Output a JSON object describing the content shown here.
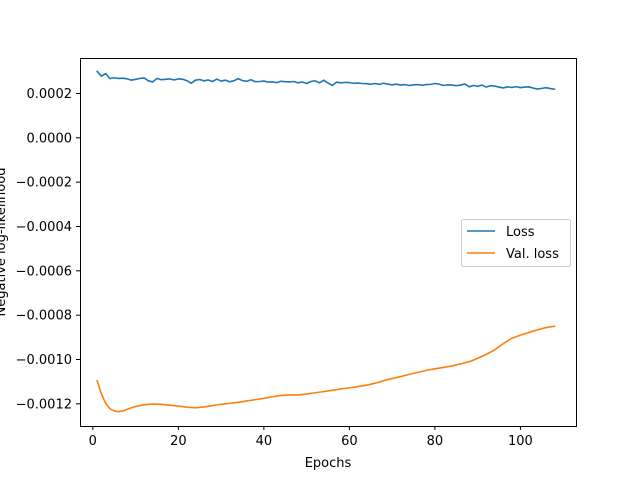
{
  "chart_data": {
    "type": "line",
    "title": "",
    "xlabel": "Epochs",
    "ylabel": "Negative log-likelihood",
    "xlim": [
      -3,
      113
    ],
    "ylim": [
      -0.0013,
      0.00036
    ],
    "x_ticks": [
      {
        "value": 0,
        "label": "0"
      },
      {
        "value": 20,
        "label": "20"
      },
      {
        "value": 40,
        "label": "40"
      },
      {
        "value": 60,
        "label": "60"
      },
      {
        "value": 80,
        "label": "80"
      },
      {
        "value": 100,
        "label": "100"
      }
    ],
    "y_ticks": [
      {
        "value": 0.0002,
        "label": "0.0002"
      },
      {
        "value": 0.0,
        "label": "0.0000"
      },
      {
        "value": -0.0002,
        "label": "−0.0002"
      },
      {
        "value": -0.0004,
        "label": "−0.0004"
      },
      {
        "value": -0.0006,
        "label": "−0.0006"
      },
      {
        "value": -0.0008,
        "label": "−0.0008"
      },
      {
        "value": -0.001,
        "label": "−0.0010"
      },
      {
        "value": -0.0012,
        "label": "−0.0012"
      }
    ],
    "grid": false,
    "legend_position": "center-right",
    "series": [
      {
        "name": "Loss",
        "color": "#1f77b4",
        "x": [
          1,
          2,
          3,
          4,
          5,
          6,
          7,
          8,
          9,
          10,
          11,
          12,
          13,
          14,
          15,
          16,
          17,
          18,
          19,
          20,
          21,
          22,
          23,
          24,
          25,
          26,
          27,
          28,
          29,
          30,
          31,
          32,
          33,
          34,
          35,
          36,
          37,
          38,
          39,
          40,
          41,
          42,
          43,
          44,
          45,
          46,
          47,
          48,
          49,
          50,
          51,
          52,
          53,
          54,
          55,
          56,
          57,
          58,
          59,
          60,
          61,
          62,
          63,
          64,
          65,
          66,
          67,
          68,
          69,
          70,
          71,
          72,
          73,
          74,
          75,
          76,
          77,
          78,
          79,
          80,
          81,
          82,
          83,
          84,
          85,
          86,
          87,
          88,
          89,
          90,
          91,
          92,
          93,
          94,
          95,
          96,
          97,
          98,
          99,
          100,
          101,
          102,
          103,
          104,
          105,
          106,
          107,
          108
        ],
        "values": [
          0.0003,
          0.000278,
          0.00029,
          0.000267,
          0.000271,
          0.000268,
          0.000269,
          0.000266,
          0.00026,
          0.000264,
          0.000268,
          0.00027,
          0.000257,
          0.000252,
          0.000268,
          0.000262,
          0.000264,
          0.000266,
          0.000261,
          0.000266,
          0.000264,
          0.000258,
          0.000246,
          0.00026,
          0.000263,
          0.000257,
          0.000261,
          0.000254,
          0.000265,
          0.000256,
          0.00026,
          0.000253,
          0.000257,
          0.000267,
          0.000258,
          0.000255,
          0.000262,
          0.000253,
          0.000254,
          0.000256,
          0.000251,
          0.000252,
          0.000249,
          0.000255,
          0.000253,
          0.000252,
          0.000254,
          0.000248,
          0.000252,
          0.000245,
          0.000254,
          0.000257,
          0.000248,
          0.00026,
          0.000247,
          0.000236,
          0.000251,
          0.000248,
          0.00025,
          0.000249,
          0.000246,
          0.000247,
          0.000245,
          0.000244,
          0.000242,
          0.000245,
          0.000241,
          0.000246,
          0.000242,
          0.000239,
          0.000242,
          0.000238,
          0.00024,
          0.000236,
          0.000239,
          0.00024,
          0.000237,
          0.00024,
          0.000241,
          0.000245,
          0.000242,
          0.000236,
          0.000239,
          0.000238,
          0.000235,
          0.000238,
          0.000243,
          0.00023,
          0.000236,
          0.000232,
          0.000238,
          0.000229,
          0.000235,
          0.000233,
          0.000229,
          0.000225,
          0.00023,
          0.000227,
          0.000231,
          0.000226,
          0.000229,
          0.00023,
          0.000224,
          0.00022,
          0.000223,
          0.000226,
          0.000222,
          0.000219
        ]
      },
      {
        "name": "Val. loss",
        "color": "#ff7f0e",
        "x": [
          1,
          2,
          3,
          4,
          5,
          6,
          7,
          8,
          9,
          10,
          12,
          14,
          16,
          18,
          20,
          22,
          24,
          26,
          28,
          30,
          32,
          34,
          36,
          38,
          40,
          42,
          44,
          46,
          48,
          50,
          52,
          54,
          56,
          58,
          60,
          62,
          64,
          66,
          68,
          70,
          72,
          74,
          76,
          78,
          80,
          82,
          84,
          86,
          88,
          90,
          92,
          94,
          96,
          98,
          100,
          102,
          104,
          106,
          108
        ],
        "values": [
          -0.001095,
          -0.001155,
          -0.001198,
          -0.001222,
          -0.001232,
          -0.001235,
          -0.001232,
          -0.001225,
          -0.001218,
          -0.001212,
          -0.001204,
          -0.001201,
          -0.001202,
          -0.001206,
          -0.00121,
          -0.001215,
          -0.001218,
          -0.001214,
          -0.001208,
          -0.001202,
          -0.001198,
          -0.001193,
          -0.001187,
          -0.001181,
          -0.001175,
          -0.001168,
          -0.001162,
          -0.00116,
          -0.00116,
          -0.001156,
          -0.00115,
          -0.001145,
          -0.001139,
          -0.001133,
          -0.001128,
          -0.001122,
          -0.001116,
          -0.001107,
          -0.001096,
          -0.001086,
          -0.001077,
          -0.001067,
          -0.001058,
          -0.001049,
          -0.001042,
          -0.001036,
          -0.001029,
          -0.00102,
          -0.00101,
          -0.000995,
          -0.000977,
          -0.000956,
          -0.000928,
          -0.000904,
          -0.00089,
          -0.000878,
          -0.000866,
          -0.000856,
          -0.00085
        ]
      }
    ]
  }
}
